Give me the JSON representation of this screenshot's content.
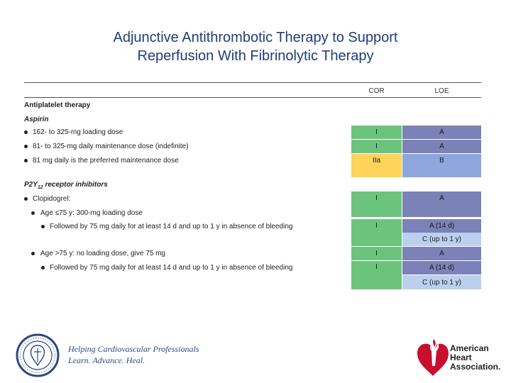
{
  "title": {
    "line1": "Adjunctive Antithrombotic Therapy to Support",
    "line2": "Reperfusion With Fibrinolytic Therapy"
  },
  "table": {
    "col_cor": "COR",
    "col_loe": "LOE",
    "section_antiplatelet": "Antiplatelet therapy",
    "aspirin": {
      "heading": "Aspirin",
      "items": [
        "162- to 325-mg loading dose",
        "81- to 325-mg daily maintenance dose (indefinite)",
        "81 mg daily is the preferred maintenance dose"
      ]
    },
    "p2y12": {
      "heading": "P2Y",
      "heading_sub": "12",
      "heading_rest": " receptor inhibitors",
      "clopidogrel": "Clopidogrel:",
      "age_le75": "Age ≤75 y: 300-mg loading dose",
      "followed1": "Followed by 75 mg daily for at least 14 d and up to 1 y in absence of bleeding",
      "age_gt75": "Age >75 y: no loading dose, give 75 mg",
      "followed2": "Followed by 75 mg daily for at least 14 d and up to 1 y in absence of bleeding"
    },
    "cells": {
      "r1": {
        "cor": "I",
        "loe": "A"
      },
      "r2": {
        "cor": "I",
        "loe": "A"
      },
      "r3": {
        "cor": "IIa",
        "loe": "B"
      },
      "r4": {
        "cor": "I",
        "loe": "A"
      },
      "r5": {
        "cor": "I",
        "loe_a": "A (14 d)",
        "loe_b": "C (up to 1 y)"
      },
      "r6": {
        "cor": "I",
        "loe": "A"
      },
      "r7": {
        "cor": "I",
        "loe_a": "A (14 d)",
        "loe_b": "C (up to 1 y)"
      }
    }
  },
  "footer": {
    "acc_tagline1": "Helping Cardiovascular Professionals",
    "acc_tagline2": "Learn. Advance. Heal.",
    "aha_line1": "American",
    "aha_line2": "Heart",
    "aha_line3": "Association."
  },
  "colors": {
    "title": "#1f3d7a",
    "cor_green": "#6cc47c",
    "cor_yellow": "#fdd35a",
    "loe_navy": "#7b82b8",
    "loe_blue": "#8fa6dc",
    "loe_light": "#bcd0ee",
    "aha_red": "#c8102e"
  }
}
